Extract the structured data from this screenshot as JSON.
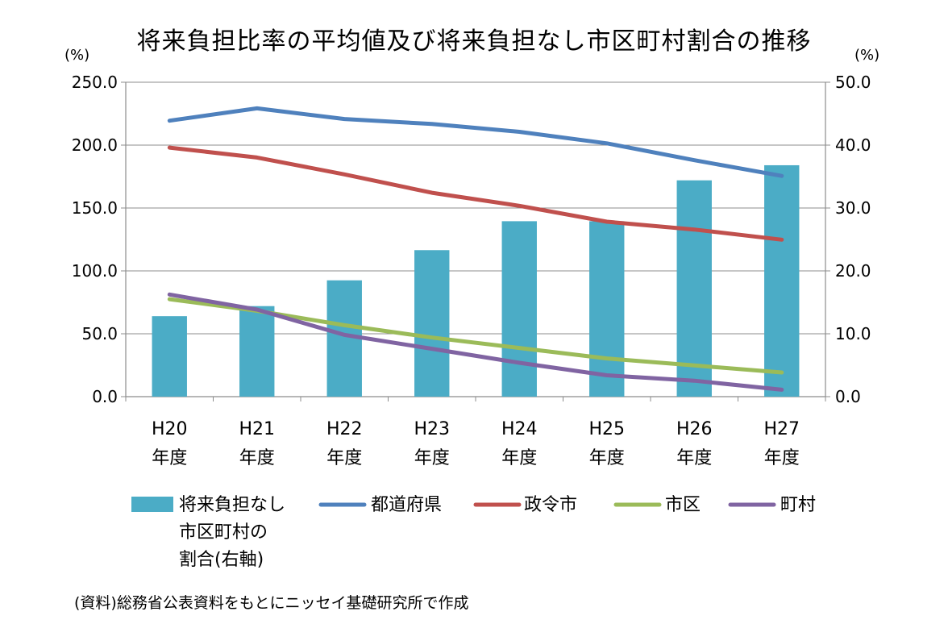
{
  "chart_data": {
    "type": "bar+line",
    "title": "将来負担比率の平均値及び将来負担なし市区町村割合の推移",
    "left_axis": {
      "unit_label": "(%)",
      "ylim": [
        0,
        250
      ],
      "ticks": [
        "0.0",
        "50.0",
        "100.0",
        "150.0",
        "200.0",
        "250.0"
      ]
    },
    "right_axis": {
      "unit_label": "(%)",
      "ylim": [
        0,
        50
      ],
      "ticks": [
        "0.0",
        "10.0",
        "20.0",
        "30.0",
        "40.0",
        "50.0"
      ]
    },
    "categories": [
      {
        "line1": "H20",
        "line2": "年度"
      },
      {
        "line1": "H21",
        "line2": "年度"
      },
      {
        "line1": "H22",
        "line2": "年度"
      },
      {
        "line1": "H23",
        "line2": "年度"
      },
      {
        "line1": "H24",
        "line2": "年度"
      },
      {
        "line1": "H25",
        "line2": "年度"
      },
      {
        "line1": "H26",
        "line2": "年度"
      },
      {
        "line1": "H27",
        "line2": "年度"
      }
    ],
    "bar_series": {
      "name": "将来負担なし市区町村の割合(右軸)",
      "legend_lines": [
        "将来負担なし",
        "市区町村の",
        "割合(右軸)"
      ],
      "axis": "right",
      "color": "#4BACC6",
      "values": [
        12.8,
        14.4,
        18.5,
        23.3,
        27.9,
        27.9,
        34.4,
        36.8
      ]
    },
    "line_series": [
      {
        "name": "都道府県",
        "axis": "left",
        "color": "#4F81BD",
        "values": [
          219.4,
          229.2,
          220.8,
          216.8,
          210.6,
          201.4,
          188.0,
          175.5
        ]
      },
      {
        "name": "政令市",
        "axis": "left",
        "color": "#C0504D",
        "values": [
          198.0,
          190.1,
          176.7,
          162.1,
          151.7,
          139.1,
          132.9,
          124.8
        ]
      },
      {
        "name": "市区",
        "axis": "left",
        "color": "#9BBB59",
        "values": [
          77.5,
          68.3,
          56.8,
          47.0,
          38.7,
          30.4,
          24.8,
          19.2
        ]
      },
      {
        "name": "町村",
        "axis": "left",
        "color": "#8064A2",
        "values": [
          81.2,
          69.2,
          49.1,
          38.1,
          26.9,
          17.0,
          12.7,
          5.5
        ]
      }
    ]
  },
  "footer": {
    "source": "(資料)総務省公表資料をもとにニッセイ基礎研究所で作成"
  }
}
